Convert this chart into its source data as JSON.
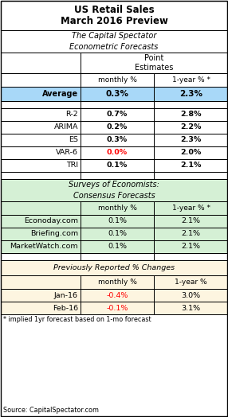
{
  "title_line1": "US Retail Sales",
  "title_line2": "March 2016 Preview",
  "section1_line1": "The Capital Spectator",
  "section1_line2": "Econometric Forecasts",
  "average_row": [
    "Average",
    "0.3%",
    "2.3%"
  ],
  "model_rows": [
    [
      "R-2",
      "0.7%",
      "2.8%"
    ],
    [
      "ARIMA",
      "0.2%",
      "2.2%"
    ],
    [
      "ES",
      "0.3%",
      "2.3%"
    ],
    [
      "VAR-6",
      "0.0%",
      "2.0%"
    ],
    [
      "TRI",
      "0.1%",
      "2.1%"
    ]
  ],
  "section2_line1": "Surveys of Economists:",
  "section2_line2": "Consensus Forecasts",
  "survey_rows": [
    [
      "Econoday.com",
      "0.1%",
      "2.1%"
    ],
    [
      "Briefing.com",
      "0.1%",
      "2.1%"
    ],
    [
      "MarketWatch.com",
      "0.1%",
      "2.1%"
    ]
  ],
  "section3_title": "Previously Reported % Changes",
  "prev_col_right": "1-year %",
  "prev_rows": [
    [
      "Jan-16",
      "-0.4%",
      "3.0%"
    ],
    [
      "Feb-16",
      "-0.1%",
      "3.1%"
    ]
  ],
  "footnote": "* implied 1yr forecast based on 1-mo forecast",
  "source": "Source: CapitalSpectator.com",
  "bg_white": "#ffffff",
  "bg_blue": "#a8d8f8",
  "bg_green": "#d5f0d5",
  "bg_peach": "#fdf5e0",
  "color_red": "#ff0000",
  "color_black": "#000000"
}
